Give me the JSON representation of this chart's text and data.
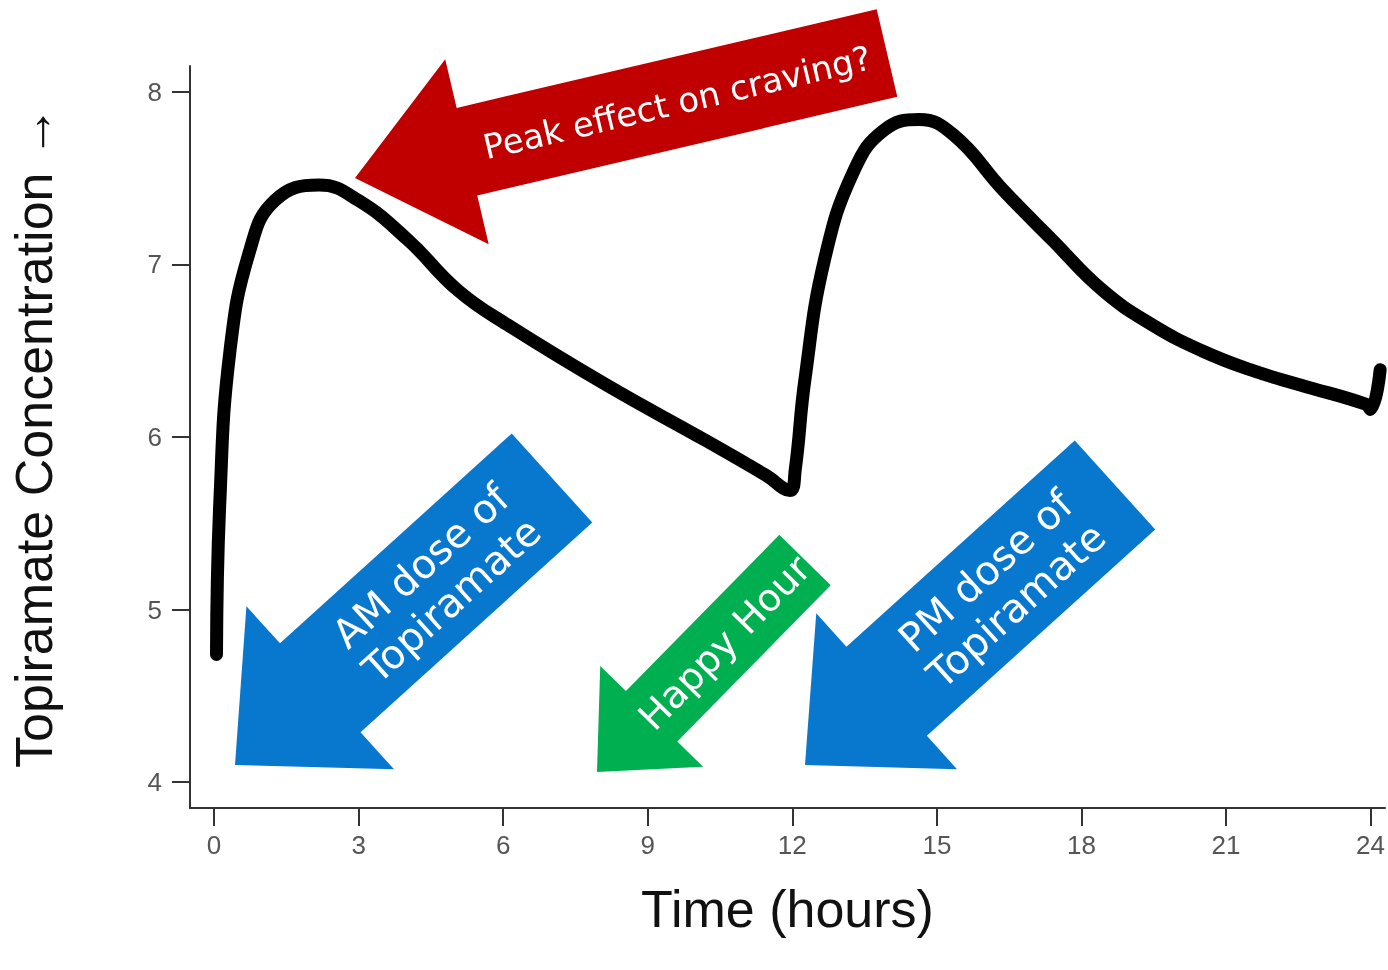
{
  "chart_data": {
    "type": "line",
    "xlabel": "Time (hours)",
    "ylabel": "Topiramate Concentration →",
    "x": [
      0.05,
      0.12,
      0.33,
      0.74,
      1.26,
      2.18,
      3.0,
      4.03,
      5.06,
      6.09,
      8.15,
      10.2,
      11.44,
      11.95,
      12.06,
      12.26,
      12.67,
      13.29,
      13.91,
      14.63,
      15.35,
      16.38,
      17.4,
      18.44,
      19.47,
      20.5,
      21.5,
      22.56,
      23.9,
      24.0,
      24.2
    ],
    "series": [
      {
        "color": "#000000",
        "values": [
          4.74,
          5.63,
          6.5,
          7.08,
          7.37,
          7.46,
          7.37,
          7.14,
          6.85,
          6.65,
          6.3,
          5.98,
          5.78,
          5.69,
          5.81,
          6.33,
          7.03,
          7.55,
          7.78,
          7.84,
          7.75,
          7.43,
          7.14,
          6.85,
          6.65,
          6.5,
          6.39,
          6.3,
          6.19,
          6.16,
          6.39
        ]
      }
    ],
    "xlim": [
      -0.5,
      24.3
    ],
    "xticks": [
      0,
      3,
      6,
      9,
      12,
      15,
      18,
      21,
      24
    ],
    "ylim": [
      3.85,
      8.15
    ],
    "yticks": [
      4,
      5,
      6,
      7,
      8
    ],
    "grid": false,
    "line_style": "solid",
    "annotations": [
      "Peak effect on craving?",
      "AM dose of Topiramate",
      "Happy Hour",
      "PM dose of Topiramate"
    ]
  }
}
